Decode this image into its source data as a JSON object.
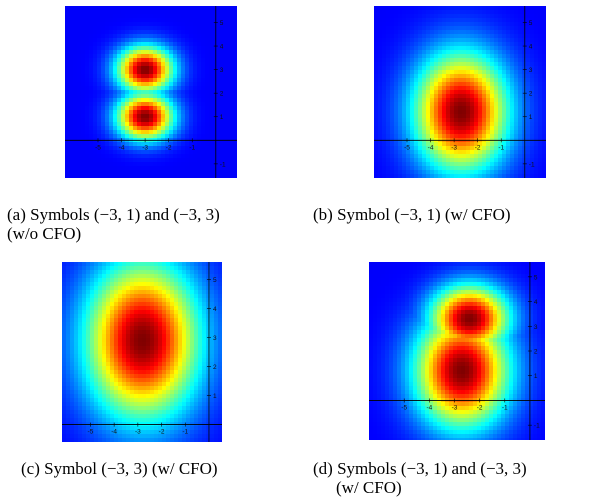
{
  "figure": {
    "panels": [
      {
        "id": "a",
        "caption_lines": [
          "(a) Symbols (−3, 1) and (−3, 3)",
          "(w/o CFO)"
        ],
        "x_ticks": [
          "-5",
          "-4",
          "-3",
          "-2",
          "-1"
        ],
        "y_ticks": [
          "-1",
          "1",
          "2",
          "3",
          "4",
          "5"
        ],
        "peaks": [
          {
            "x": -3,
            "y": 1,
            "sx": 1.15,
            "sy": 0.95
          },
          {
            "x": -3,
            "y": 3,
            "sx": 1.15,
            "sy": 0.95
          }
        ]
      },
      {
        "id": "b",
        "caption_lines": [
          "(b) Symbol (−3, 1) (w/ CFO)"
        ],
        "x_ticks": [
          "-5",
          "-4",
          "-3",
          "-2",
          "-1"
        ],
        "y_ticks": [
          "-1",
          "1",
          "2",
          "3",
          "4",
          "5"
        ],
        "peaks": [
          {
            "x": -2.7,
            "y": 1.2,
            "sx": 1.9,
            "sy": 2.4
          }
        ]
      },
      {
        "id": "c",
        "caption_lines": [
          "(c) Symbol (−3, 3) (w/ CFO)"
        ],
        "x_ticks": [
          "-5",
          "-4",
          "-3",
          "-2",
          "-1"
        ],
        "y_ticks": [
          "1",
          "2",
          "3",
          "4",
          "5"
        ],
        "peaks": [
          {
            "x": -2.8,
            "y": 2.9,
            "sx": 2.3,
            "sy": 2.6
          }
        ]
      },
      {
        "id": "d",
        "caption_lines": [
          "(d) Symbols (−3, 1) and (−3, 3)",
          "(w/ CFO)"
        ],
        "x_ticks": [
          "-5",
          "-4",
          "-3",
          "-2",
          "-1"
        ],
        "y_ticks": [
          "-1",
          "1",
          "2",
          "3",
          "4",
          "5"
        ],
        "peaks": [
          {
            "x": -2.7,
            "y": 1.2,
            "sx": 1.8,
            "sy": 2.2
          },
          {
            "x": -2.4,
            "y": 3.3,
            "sx": 1.5,
            "sy": 1.3
          }
        ]
      }
    ]
  }
}
